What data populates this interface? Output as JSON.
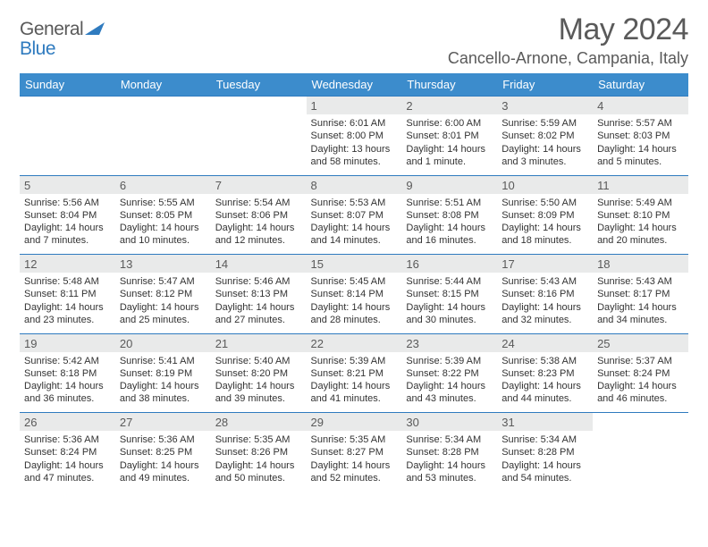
{
  "brand": {
    "text1": "General",
    "text2": "Blue",
    "color_general": "#5a5a5a",
    "color_blue": "#2f7bbf",
    "triangle_color": "#2f7bbf"
  },
  "title": "May 2024",
  "location": "Cancello-Arnone, Campania, Italy",
  "colors": {
    "header_bg": "#3c8ccc",
    "header_fg": "#ffffff",
    "daynum_bg": "#e9eaea",
    "daynum_fg": "#5a5a5a",
    "rule": "#2f7bbf",
    "body_text": "#333333",
    "page_bg": "#ffffff"
  },
  "weekdays": [
    "Sunday",
    "Monday",
    "Tuesday",
    "Wednesday",
    "Thursday",
    "Friday",
    "Saturday"
  ],
  "weeks": [
    [
      null,
      null,
      null,
      {
        "n": "1",
        "sr": "6:01 AM",
        "ss": "8:00 PM",
        "dl": "13 hours and 58 minutes."
      },
      {
        "n": "2",
        "sr": "6:00 AM",
        "ss": "8:01 PM",
        "dl": "14 hours and 1 minute."
      },
      {
        "n": "3",
        "sr": "5:59 AM",
        "ss": "8:02 PM",
        "dl": "14 hours and 3 minutes."
      },
      {
        "n": "4",
        "sr": "5:57 AM",
        "ss": "8:03 PM",
        "dl": "14 hours and 5 minutes."
      }
    ],
    [
      {
        "n": "5",
        "sr": "5:56 AM",
        "ss": "8:04 PM",
        "dl": "14 hours and 7 minutes."
      },
      {
        "n": "6",
        "sr": "5:55 AM",
        "ss": "8:05 PM",
        "dl": "14 hours and 10 minutes."
      },
      {
        "n": "7",
        "sr": "5:54 AM",
        "ss": "8:06 PM",
        "dl": "14 hours and 12 minutes."
      },
      {
        "n": "8",
        "sr": "5:53 AM",
        "ss": "8:07 PM",
        "dl": "14 hours and 14 minutes."
      },
      {
        "n": "9",
        "sr": "5:51 AM",
        "ss": "8:08 PM",
        "dl": "14 hours and 16 minutes."
      },
      {
        "n": "10",
        "sr": "5:50 AM",
        "ss": "8:09 PM",
        "dl": "14 hours and 18 minutes."
      },
      {
        "n": "11",
        "sr": "5:49 AM",
        "ss": "8:10 PM",
        "dl": "14 hours and 20 minutes."
      }
    ],
    [
      {
        "n": "12",
        "sr": "5:48 AM",
        "ss": "8:11 PM",
        "dl": "14 hours and 23 minutes."
      },
      {
        "n": "13",
        "sr": "5:47 AM",
        "ss": "8:12 PM",
        "dl": "14 hours and 25 minutes."
      },
      {
        "n": "14",
        "sr": "5:46 AM",
        "ss": "8:13 PM",
        "dl": "14 hours and 27 minutes."
      },
      {
        "n": "15",
        "sr": "5:45 AM",
        "ss": "8:14 PM",
        "dl": "14 hours and 28 minutes."
      },
      {
        "n": "16",
        "sr": "5:44 AM",
        "ss": "8:15 PM",
        "dl": "14 hours and 30 minutes."
      },
      {
        "n": "17",
        "sr": "5:43 AM",
        "ss": "8:16 PM",
        "dl": "14 hours and 32 minutes."
      },
      {
        "n": "18",
        "sr": "5:43 AM",
        "ss": "8:17 PM",
        "dl": "14 hours and 34 minutes."
      }
    ],
    [
      {
        "n": "19",
        "sr": "5:42 AM",
        "ss": "8:18 PM",
        "dl": "14 hours and 36 minutes."
      },
      {
        "n": "20",
        "sr": "5:41 AM",
        "ss": "8:19 PM",
        "dl": "14 hours and 38 minutes."
      },
      {
        "n": "21",
        "sr": "5:40 AM",
        "ss": "8:20 PM",
        "dl": "14 hours and 39 minutes."
      },
      {
        "n": "22",
        "sr": "5:39 AM",
        "ss": "8:21 PM",
        "dl": "14 hours and 41 minutes."
      },
      {
        "n": "23",
        "sr": "5:39 AM",
        "ss": "8:22 PM",
        "dl": "14 hours and 43 minutes."
      },
      {
        "n": "24",
        "sr": "5:38 AM",
        "ss": "8:23 PM",
        "dl": "14 hours and 44 minutes."
      },
      {
        "n": "25",
        "sr": "5:37 AM",
        "ss": "8:24 PM",
        "dl": "14 hours and 46 minutes."
      }
    ],
    [
      {
        "n": "26",
        "sr": "5:36 AM",
        "ss": "8:24 PM",
        "dl": "14 hours and 47 minutes."
      },
      {
        "n": "27",
        "sr": "5:36 AM",
        "ss": "8:25 PM",
        "dl": "14 hours and 49 minutes."
      },
      {
        "n": "28",
        "sr": "5:35 AM",
        "ss": "8:26 PM",
        "dl": "14 hours and 50 minutes."
      },
      {
        "n": "29",
        "sr": "5:35 AM",
        "ss": "8:27 PM",
        "dl": "14 hours and 52 minutes."
      },
      {
        "n": "30",
        "sr": "5:34 AM",
        "ss": "8:28 PM",
        "dl": "14 hours and 53 minutes."
      },
      {
        "n": "31",
        "sr": "5:34 AM",
        "ss": "8:28 PM",
        "dl": "14 hours and 54 minutes."
      },
      null
    ]
  ],
  "labels": {
    "sunrise": "Sunrise:",
    "sunset": "Sunset:",
    "daylight": "Daylight:"
  }
}
